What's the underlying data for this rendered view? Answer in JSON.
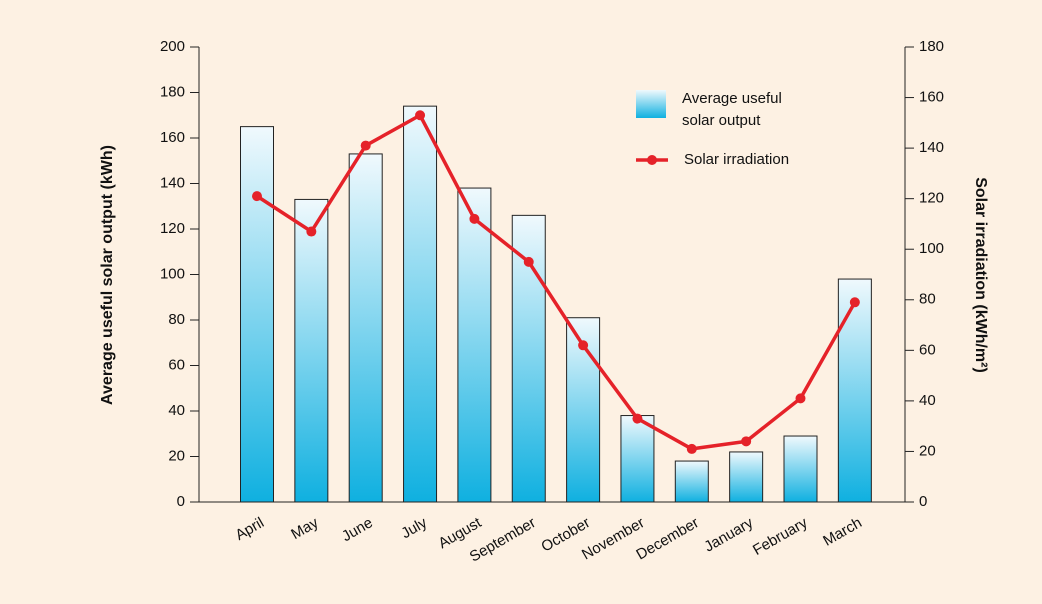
{
  "chart_data": {
    "type": "bar_line",
    "y_label": "Average useful solar output (kWh)",
    "y2_label": "Solar irradiation (kWh/m²)",
    "categories": [
      "April",
      "May",
      "June",
      "July",
      "August",
      "September",
      "October",
      "November",
      "December",
      "January",
      "February",
      "March"
    ],
    "series": [
      {
        "name": "Average useful solar output",
        "type": "bar",
        "color": "#12b2e2",
        "values": [
          165,
          133,
          153,
          174,
          138,
          126,
          81,
          38,
          18,
          22,
          29,
          98
        ]
      },
      {
        "name": "Solar irradiation",
        "type": "line",
        "axis": "y2",
        "color": "#e52229",
        "values": [
          121,
          107,
          141,
          153,
          112,
          95,
          62,
          33,
          21,
          24,
          41,
          79
        ]
      }
    ],
    "ylim": [
      0,
      200
    ],
    "yticks": [
      0,
      20,
      40,
      60,
      80,
      100,
      120,
      140,
      160,
      180,
      200
    ],
    "y2lim": [
      0,
      180
    ],
    "y2ticks": [
      0,
      20,
      40,
      60,
      80,
      100,
      120,
      140,
      160,
      180
    ]
  }
}
